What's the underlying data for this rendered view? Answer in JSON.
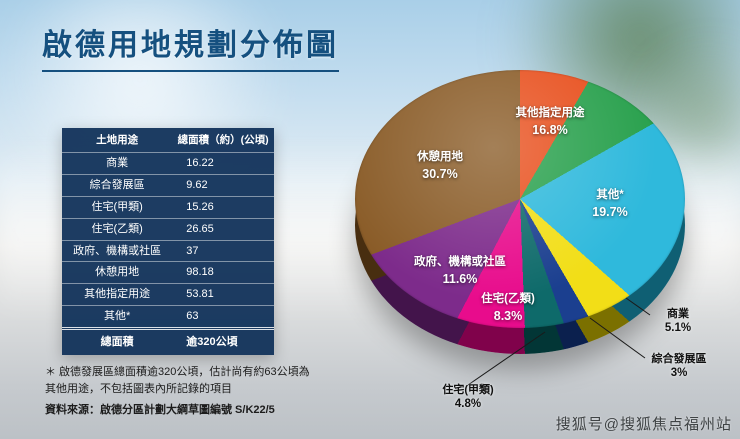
{
  "title": "啟德用地規劃分佈圖",
  "table": {
    "headers": [
      "土地用途",
      "總面積（約）(公頃)"
    ],
    "rows": [
      [
        "商業",
        "16.22"
      ],
      [
        "綜合發展區",
        "9.62"
      ],
      [
        "住宅(甲類)",
        "15.26"
      ],
      [
        "住宅(乙類)",
        "26.65"
      ],
      [
        "政府、機構或社區",
        "37"
      ],
      [
        "休憩用地",
        "98.18"
      ],
      [
        "其他指定用途",
        "53.81"
      ],
      [
        "其他*",
        "63"
      ]
    ],
    "total_row": [
      "總面積",
      "逾320公頃"
    ]
  },
  "footnote": "＊ 啟德發展區總面積逾320公頃，估計尚有約63公頃為其他用途，不包括圖表內所記錄的項目",
  "source": "資料來源：啟德分區計劃大綱草圖編號 S/K22/5",
  "watermark": "搜狐号@搜狐焦点福州站",
  "chart_data": {
    "type": "pie",
    "title": "啟德用地規劃分佈圖",
    "unit": "公頃",
    "legend_position": "labels-on-slices",
    "start_angle_deg": 0,
    "slices": [
      {
        "label": "其他指定用途",
        "pct": 16.8,
        "pct_text": "16.8%",
        "area_ha": 53.81,
        "colors": [
          "#e8501e",
          "#2aa14e"
        ]
      },
      {
        "label": "其他*",
        "pct": 19.7,
        "pct_text": "19.7%",
        "area_ha": 63,
        "colors": [
          "#2fb9dc"
        ]
      },
      {
        "label": "商業",
        "pct": 5.1,
        "pct_text": "5.1%",
        "area_ha": 16.22,
        "colors": [
          "#f2de17"
        ]
      },
      {
        "label": "綜合發展區",
        "pct": 3.0,
        "pct_text": "3%",
        "area_ha": 9.62,
        "colors": [
          "#1b3f8f"
        ]
      },
      {
        "label": "住宅(甲類)",
        "pct": 4.8,
        "pct_text": "4.8%",
        "area_ha": 15.26,
        "colors": [
          "#0e6a6a"
        ]
      },
      {
        "label": "住宅(乙類)",
        "pct": 8.3,
        "pct_text": "8.3%",
        "area_ha": 26.65,
        "colors": [
          "#e80c8c"
        ]
      },
      {
        "label": "政府、機構或社區",
        "pct": 11.6,
        "pct_text": "11.6%",
        "area_ha": 37,
        "colors": [
          "#7d2b8b"
        ]
      },
      {
        "label": "休憩用地",
        "pct": 30.7,
        "pct_text": "30.7%",
        "area_ha": 98.18,
        "colors": [
          "#8a5c28"
        ]
      }
    ]
  }
}
